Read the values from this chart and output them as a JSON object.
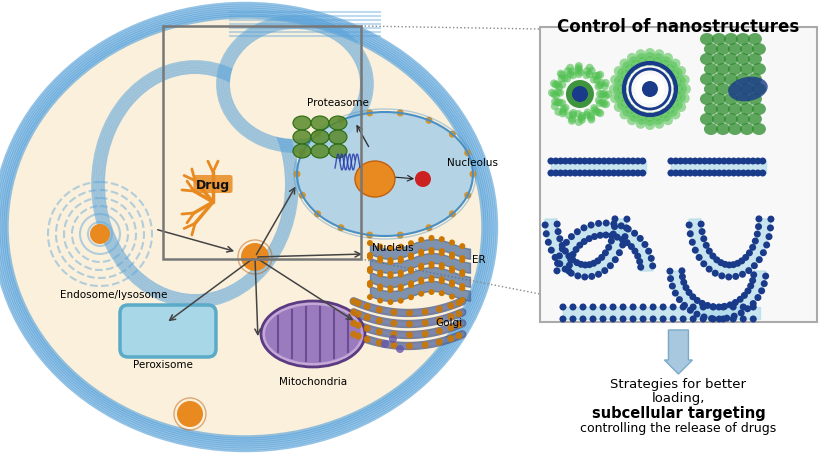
{
  "title": "Control of nanostructures",
  "subtitle_line1": "Strategies for better",
  "subtitle_line2": "loading,",
  "subtitle_bold": "subcellular targeting",
  "subtitle_line3": "controlling the release of drugs",
  "labels": {
    "proteasome": "Proteasome",
    "drug": "Drug",
    "nucleolus": "Nucleolus",
    "nucleus": "Nucleus",
    "er": "ER",
    "golgi": "Golgi",
    "mitochondria": "Mitochondria",
    "peroxisome": "Peroxisome",
    "endosome": "Endosome/lysosome"
  },
  "cell_bg": "#FAF0DC",
  "cell_membrane_color": "#5BA3D9",
  "nucleus_fill": "#A8D0E8",
  "nucleus_border": "#4A90C4",
  "nucleus_pore": "#D4922A",
  "mitochondria_fill": "#9B7FC0",
  "mitochondria_border": "#5A3A80",
  "perox_fill": "#A8D8E8",
  "perox_border": "#5AAAC8",
  "er_color": "#CC7700",
  "er_fill": "#4A6A9A",
  "golgi_color": "#BB7700",
  "golgi_fill": "#4A5A8A",
  "proto_color": "#5A8A2A",
  "nano_orange": "#E88A20",
  "nano_border": "#C06010",
  "drug_color": "#E88A20",
  "background": "#FFFFFF",
  "box_outline": "#888888",
  "arrow_color": "#444444",
  "nanobox_bg": "#F8F8F8",
  "nanobox_border": "#AAAAAA",
  "bilayer_dark": "#1A3A8A",
  "bilayer_light": "#A8D8E8",
  "green_nano": "#2A8A2A",
  "green_light": "#50C050"
}
